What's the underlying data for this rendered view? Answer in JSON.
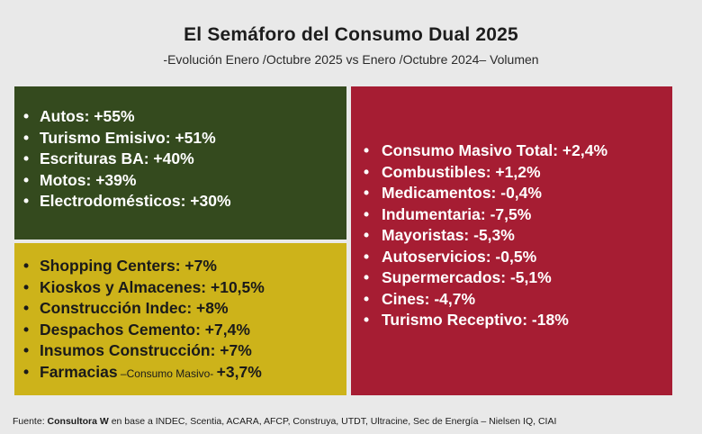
{
  "title": "El Semáforo del Consumo Dual 2025",
  "subtitle": "-Evolución Enero /Octubre 2025 vs Enero /Octubre 2024– Volumen",
  "colors": {
    "green": "#344a1e",
    "yellow": "#cdb31a",
    "red": "#a61d33",
    "background": "#e9e9e9"
  },
  "green_panel": {
    "items": [
      "Autos: +55%",
      "Turismo Emisivo: +51%",
      "Escrituras BA: +40%",
      "Motos: +39%",
      "Electrodomésticos: +30%"
    ]
  },
  "yellow_panel": {
    "items": [
      "Shopping Centers: +7%",
      "Kioskos y Almacenes: +10,5%",
      "Construcción Indec: +8%",
      "Despachos Cemento: +7,4%",
      "Insumos Construcción: +7%"
    ],
    "last_item": {
      "label": "Farmacias",
      "note": " –Consumo Masivo- ",
      "value": "+3,7%"
    }
  },
  "red_panel": {
    "items": [
      "Consumo Masivo Total: +2,4%",
      "Combustibles: +1,2%",
      "Medicamentos: -0,4%",
      "Indumentaria: -7,5%",
      "Mayoristas: -5,3%",
      "Autoservicios: -0,5%",
      "Supermercados: -5,1%",
      "Cines: -4,7%",
      "Turismo Receptivo: -18%"
    ]
  },
  "source": {
    "prefix": "Fuente: ",
    "org": "Consultora W",
    "rest": " en base a INDEC, Scentia, ACARA, AFCP, Construya, UTDT, Ultracine, Sec de Energía – Nielsen IQ, CIAI"
  }
}
